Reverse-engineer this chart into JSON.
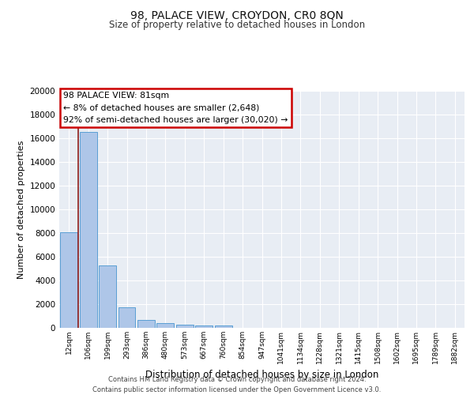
{
  "title": "98, PALACE VIEW, CROYDON, CR0 8QN",
  "subtitle": "Size of property relative to detached houses in London",
  "xlabel": "Distribution of detached houses by size in London",
  "ylabel": "Number of detached properties",
  "categories": [
    "12sqm",
    "106sqm",
    "199sqm",
    "293sqm",
    "386sqm",
    "480sqm",
    "573sqm",
    "667sqm",
    "760sqm",
    "854sqm",
    "947sqm",
    "1041sqm",
    "1134sqm",
    "1228sqm",
    "1321sqm",
    "1415sqm",
    "1508sqm",
    "1602sqm",
    "1695sqm",
    "1789sqm",
    "1882sqm"
  ],
  "values": [
    8100,
    16500,
    5300,
    1750,
    700,
    380,
    270,
    185,
    170,
    0,
    0,
    0,
    0,
    0,
    0,
    0,
    0,
    0,
    0,
    0,
    0
  ],
  "bar_color": "#aec6e8",
  "bar_edge_color": "#5a9fd4",
  "background_color": "#e8edf4",
  "grid_color": "#ffffff",
  "annotation_text": "98 PALACE VIEW: 81sqm\n← 8% of detached houses are smaller (2,648)\n92% of semi-detached houses are larger (30,020) →",
  "annotation_box_color": "#ffffff",
  "annotation_box_edge": "#cc0000",
  "vline_color": "#8b1a1a",
  "ylim": [
    0,
    20000
  ],
  "yticks": [
    0,
    2000,
    4000,
    6000,
    8000,
    10000,
    12000,
    14000,
    16000,
    18000,
    20000
  ],
  "footer": "Contains HM Land Registry data © Crown copyright and database right 2024.\nContains public sector information licensed under the Open Government Licence v3.0."
}
